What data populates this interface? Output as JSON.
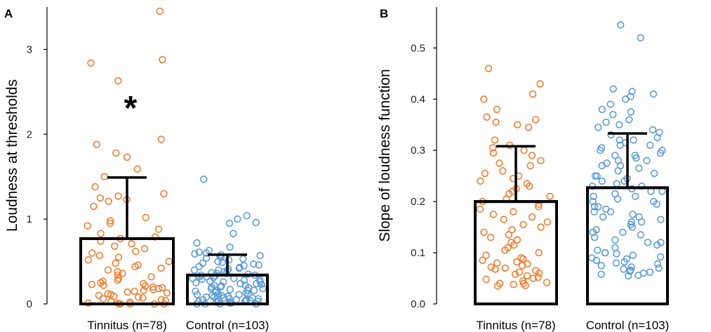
{
  "chart_data": [
    {
      "panel": "A",
      "type": "bar",
      "ylabel": "Loudness at thresholds",
      "xlabel": "",
      "ylim": [
        0,
        3.5
      ],
      "yticks": [
        "0",
        "1",
        "2",
        "3"
      ],
      "categories": [
        "Tinnitus (n=78)",
        "Control (n=103)"
      ],
      "values": [
        0.77,
        0.34
      ],
      "error_upper": [
        1.49,
        0.58
      ],
      "annotation": "*",
      "point_colors": [
        "#ed7d31",
        "#5b9bd5"
      ],
      "points": [
        [
          3.45,
          2.88,
          2.84,
          2.63,
          1.94,
          1.88,
          1.78,
          1.73,
          1.59,
          1.5,
          1.38,
          1.3,
          1.27,
          1.25,
          1.23,
          1.21,
          1.15,
          1.02,
          0.98,
          0.95,
          0.92,
          0.88,
          0.83,
          0.79,
          0.77,
          0.74,
          0.71,
          0.68,
          0.65,
          0.62,
          0.6,
          0.57,
          0.55,
          0.52,
          0.5,
          0.48,
          0.46,
          0.44,
          0.42,
          0.4,
          0.38,
          0.36,
          0.34,
          0.32,
          0.3,
          0.28,
          0.27,
          0.25,
          0.24,
          0.23,
          0.22,
          0.21,
          0.2,
          0.19,
          0.18,
          0.17,
          0.16,
          0.15,
          0.14,
          0.13,
          0.12,
          0.11,
          0.1,
          0.09,
          0.08,
          0.07,
          0.06,
          0.05,
          0.04,
          0.03,
          0.02,
          0.01,
          0.01,
          0.0,
          0.0,
          0.0,
          0.0,
          0.0
        ],
        [
          1.47,
          1.04,
          1.0,
          0.96,
          0.95,
          0.83,
          0.72,
          0.67,
          0.63,
          0.61,
          0.6,
          0.59,
          0.58,
          0.57,
          0.56,
          0.55,
          0.54,
          0.53,
          0.52,
          0.5,
          0.49,
          0.48,
          0.47,
          0.46,
          0.45,
          0.44,
          0.43,
          0.42,
          0.41,
          0.4,
          0.4,
          0.39,
          0.38,
          0.37,
          0.36,
          0.36,
          0.35,
          0.34,
          0.34,
          0.33,
          0.32,
          0.32,
          0.31,
          0.3,
          0.3,
          0.29,
          0.28,
          0.28,
          0.27,
          0.26,
          0.26,
          0.25,
          0.24,
          0.24,
          0.23,
          0.22,
          0.22,
          0.21,
          0.2,
          0.2,
          0.19,
          0.18,
          0.18,
          0.17,
          0.16,
          0.16,
          0.15,
          0.14,
          0.14,
          0.13,
          0.12,
          0.12,
          0.11,
          0.11,
          0.1,
          0.1,
          0.09,
          0.09,
          0.08,
          0.08,
          0.07,
          0.07,
          0.06,
          0.06,
          0.05,
          0.05,
          0.05,
          0.04,
          0.04,
          0.04,
          0.03,
          0.03,
          0.03,
          0.02,
          0.02,
          0.02,
          0.01,
          0.01,
          0.01,
          0.0,
          0.0,
          0.0,
          0.0
        ]
      ]
    },
    {
      "panel": "B",
      "type": "bar",
      "ylabel": "Slope of loudness function",
      "xlabel": "",
      "ylim": [
        0,
        0.58
      ],
      "yticks": [
        "0.0",
        "0.1",
        "0.2",
        "0.3",
        "0.4",
        "0.5"
      ],
      "categories": [
        "Tinnitus (n=78)",
        "Control (n=103)"
      ],
      "values": [
        0.2,
        0.227
      ],
      "error_upper": [
        0.308,
        0.333
      ],
      "point_colors": [
        "#ed7d31",
        "#5b9bd5"
      ],
      "points": [
        [
          0.46,
          0.43,
          0.41,
          0.4,
          0.38,
          0.365,
          0.36,
          0.355,
          0.35,
          0.345,
          0.32,
          0.31,
          0.305,
          0.3,
          0.295,
          0.29,
          0.28,
          0.275,
          0.27,
          0.26,
          0.255,
          0.25,
          0.245,
          0.24,
          0.235,
          0.23,
          0.225,
          0.22,
          0.215,
          0.21,
          0.205,
          0.2,
          0.195,
          0.19,
          0.185,
          0.18,
          0.175,
          0.17,
          0.165,
          0.16,
          0.155,
          0.15,
          0.145,
          0.14,
          0.135,
          0.13,
          0.125,
          0.12,
          0.115,
          0.11,
          0.105,
          0.1,
          0.095,
          0.09,
          0.088,
          0.085,
          0.082,
          0.08,
          0.078,
          0.075,
          0.072,
          0.07,
          0.068,
          0.065,
          0.062,
          0.06,
          0.058,
          0.055,
          0.052,
          0.05,
          0.048,
          0.045,
          0.042,
          0.04,
          0.04,
          0.038,
          0.036,
          0.035
        ],
        [
          0.545,
          0.52,
          0.42,
          0.415,
          0.41,
          0.405,
          0.4,
          0.39,
          0.38,
          0.375,
          0.37,
          0.36,
          0.355,
          0.35,
          0.345,
          0.34,
          0.335,
          0.33,
          0.325,
          0.32,
          0.315,
          0.31,
          0.305,
          0.3,
          0.295,
          0.29,
          0.285,
          0.28,
          0.275,
          0.27,
          0.265,
          0.26,
          0.255,
          0.25,
          0.245,
          0.24,
          0.235,
          0.23,
          0.225,
          0.22,
          0.215,
          0.21,
          0.205,
          0.2,
          0.2,
          0.195,
          0.19,
          0.185,
          0.18,
          0.18,
          0.175,
          0.17,
          0.165,
          0.16,
          0.16,
          0.155,
          0.15,
          0.145,
          0.14,
          0.14,
          0.135,
          0.13,
          0.125,
          0.12,
          0.12,
          0.115,
          0.11,
          0.105,
          0.1,
          0.1,
          0.098,
          0.095,
          0.092,
          0.09,
          0.088,
          0.085,
          0.082,
          0.08,
          0.078,
          0.075,
          0.072,
          0.07,
          0.068,
          0.066,
          0.064,
          0.062,
          0.06,
          0.058,
          0.056,
          0.055,
          0.27,
          0.28,
          0.29,
          0.3,
          0.31,
          0.32,
          0.25,
          0.24,
          0.23,
          0.22,
          0.21,
          0.19,
          0.17
        ]
      ]
    }
  ]
}
